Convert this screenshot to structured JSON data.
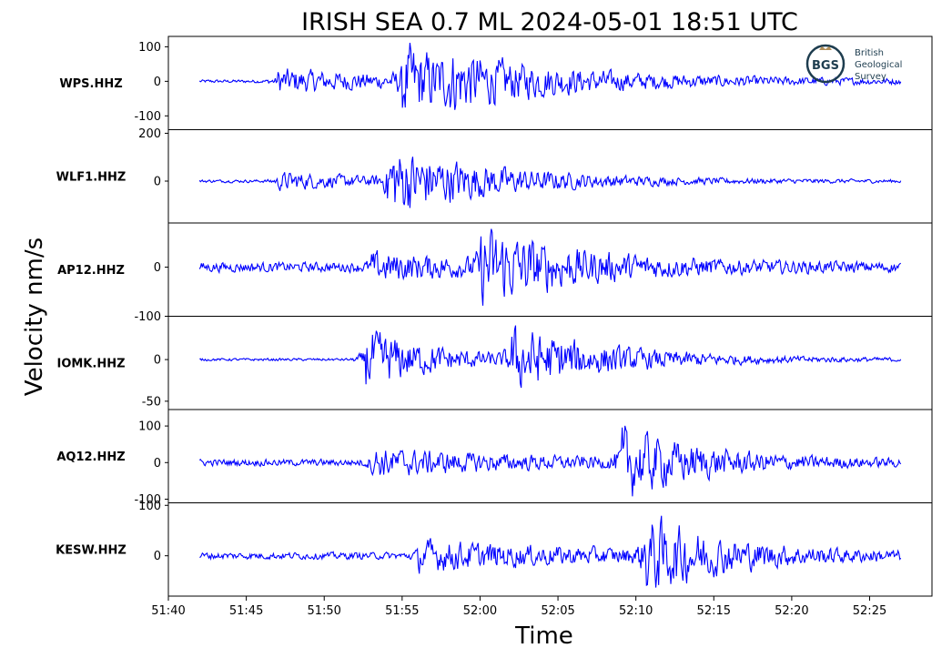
{
  "chart_data": {
    "type": "line",
    "title": "IRISH SEA 0.7 ML   2024-05-01 18:51 UTC",
    "xlabel": "Time",
    "ylabel": "Velocity nm/s",
    "x_range": [
      "51:40",
      "52:29"
    ],
    "x_ticks": [
      "51:40",
      "51:45",
      "51:50",
      "51:55",
      "52:00",
      "52:05",
      "52:10",
      "52:15",
      "52:20",
      "52:25"
    ],
    "trace_span": [
      "51:42",
      "52:27"
    ],
    "line_color": "#0000ff",
    "grid": false,
    "panels": [
      {
        "station": "WPS.HHZ",
        "ylim": [
          -140,
          130
        ],
        "yticks": [
          {
            "value": 100,
            "label": "100"
          },
          {
            "value": 0,
            "label": "0"
          },
          {
            "value": -100,
            "label": "-100"
          }
        ],
        "noise": 6,
        "events": [
          {
            "time": "51:47",
            "amp": 45,
            "decay": 10
          },
          {
            "time": "51:55",
            "amp": 125,
            "decay": 5
          },
          {
            "time": "51:58",
            "amp": 40,
            "decay": 14
          }
        ]
      },
      {
        "station": "WLF1.HHZ",
        "ylim": [
          -175,
          215
        ],
        "yticks": [
          {
            "value": 200,
            "label": "200"
          },
          {
            "value": 0,
            "label": "0"
          }
        ],
        "noise": 8,
        "events": [
          {
            "time": "51:47",
            "amp": 45,
            "decay": 8
          },
          {
            "time": "51:54",
            "amp": 180,
            "decay": 7
          }
        ]
      },
      {
        "station": "AP12.HHZ",
        "ylim": [
          -100,
          90
        ],
        "yticks": [
          {
            "value": 0,
            "label": "0"
          },
          {
            "value": -100,
            "label": "-100"
          }
        ],
        "noise": 13,
        "events": [
          {
            "time": "51:53",
            "amp": 30,
            "decay": 9
          },
          {
            "time": "52:00",
            "amp": 90,
            "decay": 6
          }
        ]
      },
      {
        "station": "IOMK.HHZ",
        "ylim": [
          -60,
          52
        ],
        "yticks": [
          {
            "value": 0,
            "label": "0"
          },
          {
            "value": -50,
            "label": "-50"
          }
        ],
        "noise": 2,
        "events": [
          {
            "time": "51:52.6",
            "amp": 48,
            "decay": 5
          },
          {
            "time": "52:02",
            "amp": 45,
            "decay": 7
          }
        ]
      },
      {
        "station": "AQ12.HHZ",
        "ylim": [
          -110,
          145
        ],
        "yticks": [
          {
            "value": 100,
            "label": "100"
          },
          {
            "value": 0,
            "label": "0"
          },
          {
            "value": -100,
            "label": "-100"
          }
        ],
        "noise": 12,
        "events": [
          {
            "time": "51:53",
            "amp": 45,
            "decay": 10
          },
          {
            "time": "52:09",
            "amp": 120,
            "decay": 5
          }
        ]
      },
      {
        "station": "KESW.HHZ",
        "ylim": [
          -80,
          105
        ],
        "yticks": [
          {
            "value": 100,
            "label": "100"
          },
          {
            "value": 0,
            "label": "0"
          }
        ],
        "noise": 9,
        "events": [
          {
            "time": "51:56",
            "amp": 35,
            "decay": 12
          },
          {
            "time": "52:10.5",
            "amp": 90,
            "decay": 5
          }
        ]
      }
    ]
  },
  "logo": {
    "initials": "BGS",
    "lines": [
      "British",
      "Geological",
      "Survey"
    ],
    "color": "#1e3d4f",
    "accent": "#b08d57"
  }
}
